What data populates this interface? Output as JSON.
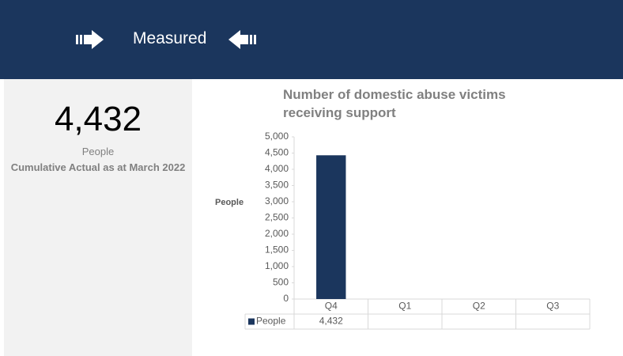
{
  "header": {
    "title": "Measured"
  },
  "kpi": {
    "value": "4,432",
    "unit": "People",
    "caption": "Cumulative Actual as at March 2022"
  },
  "chart_data": {
    "type": "bar",
    "title": "Number of domestic abuse victims receiving support",
    "y_label": "People",
    "categories": [
      "Q4",
      "Q1",
      "Q2",
      "Q3"
    ],
    "series": [
      {
        "name": "People",
        "color": "#1b365d",
        "values": [
          4432,
          null,
          null,
          null
        ],
        "value_labels": [
          "4,432",
          null,
          null,
          null
        ]
      }
    ],
    "ylim": [
      0,
      5000
    ],
    "yticks": [
      0,
      500,
      {
        "value": 1000,
        "label": "1,000"
      },
      {
        "value": 1500,
        "label": "1,500"
      },
      {
        "value": 2000,
        "label": "2,000"
      },
      {
        "value": 2500,
        "label": "2,500"
      },
      {
        "value": 3000,
        "label": "3,000"
      },
      {
        "value": 3500,
        "label": "3,500"
      },
      {
        "value": 4000,
        "label": "4,000"
      },
      {
        "value": 4500,
        "label": "4,500"
      },
      {
        "value": 5000,
        "label": "5,000"
      }
    ],
    "grid": false
  }
}
